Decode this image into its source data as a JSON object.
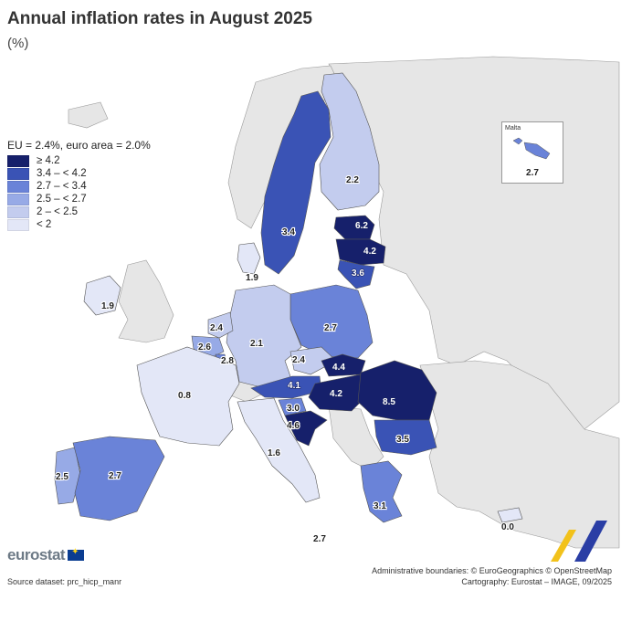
{
  "title": "Annual inflation rates in August 2025",
  "subtitle": "(%)",
  "legend": {
    "title": "EU = 2.4%, euro area = 2.0%",
    "items": [
      {
        "label": "≥ 4.2",
        "color": "#16206b"
      },
      {
        "label": "3.4 – < 4.2",
        "color": "#3a53b5"
      },
      {
        "label": "2.7 – < 3.4",
        "color": "#6a83d8"
      },
      {
        "label": "2.5 – < 2.7",
        "color": "#97aae6"
      },
      {
        "label": "2 – < 2.5",
        "color": "#c3ccee"
      },
      {
        "label": "< 2",
        "color": "#e3e7f7"
      }
    ]
  },
  "countries": [
    {
      "name": "Sweden",
      "value": "3.4"
    },
    {
      "name": "Finland",
      "value": "2.2"
    },
    {
      "name": "Estonia",
      "value": "6.2"
    },
    {
      "name": "Latvia",
      "value": "4.2"
    },
    {
      "name": "Lithuania",
      "value": "3.6"
    },
    {
      "name": "Denmark",
      "value": "1.9"
    },
    {
      "name": "Ireland",
      "value": "1.9"
    },
    {
      "name": "Netherlands",
      "value": "2.4"
    },
    {
      "name": "Belgium",
      "value": "2.6"
    },
    {
      "name": "Luxembourg",
      "value": "2.8"
    },
    {
      "name": "Germany",
      "value": "2.1"
    },
    {
      "name": "Poland",
      "value": "2.7"
    },
    {
      "name": "Czechia",
      "value": "2.4"
    },
    {
      "name": "Slovakia",
      "value": "4.4"
    },
    {
      "name": "Austria",
      "value": "4.1"
    },
    {
      "name": "Hungary",
      "value": "4.2"
    },
    {
      "name": "Romania",
      "value": "8.5"
    },
    {
      "name": "Slovenia",
      "value": "3.0"
    },
    {
      "name": "Croatia",
      "value": "4.6"
    },
    {
      "name": "France",
      "value": "0.8"
    },
    {
      "name": "Italy",
      "value": "1.6"
    },
    {
      "name": "Bulgaria",
      "value": "3.5"
    },
    {
      "name": "Portugal",
      "value": "2.5"
    },
    {
      "name": "Spain",
      "value": "2.7"
    },
    {
      "name": "Greece",
      "value": "3.1"
    },
    {
      "name": "Malta",
      "value": "2.7"
    },
    {
      "name": "Cyprus",
      "value": "0.0"
    }
  ],
  "malta_inset": {
    "label": "Malta",
    "value": "2.7"
  },
  "brand": "eurostat",
  "source": "Source dataset: prc_hicp_manr",
  "credits": {
    "line1": "Administrative boundaries: © EuroGeographics © OpenStreetMap",
    "line2": "Cartography: Eurostat – IMAGE, 09/2025"
  }
}
